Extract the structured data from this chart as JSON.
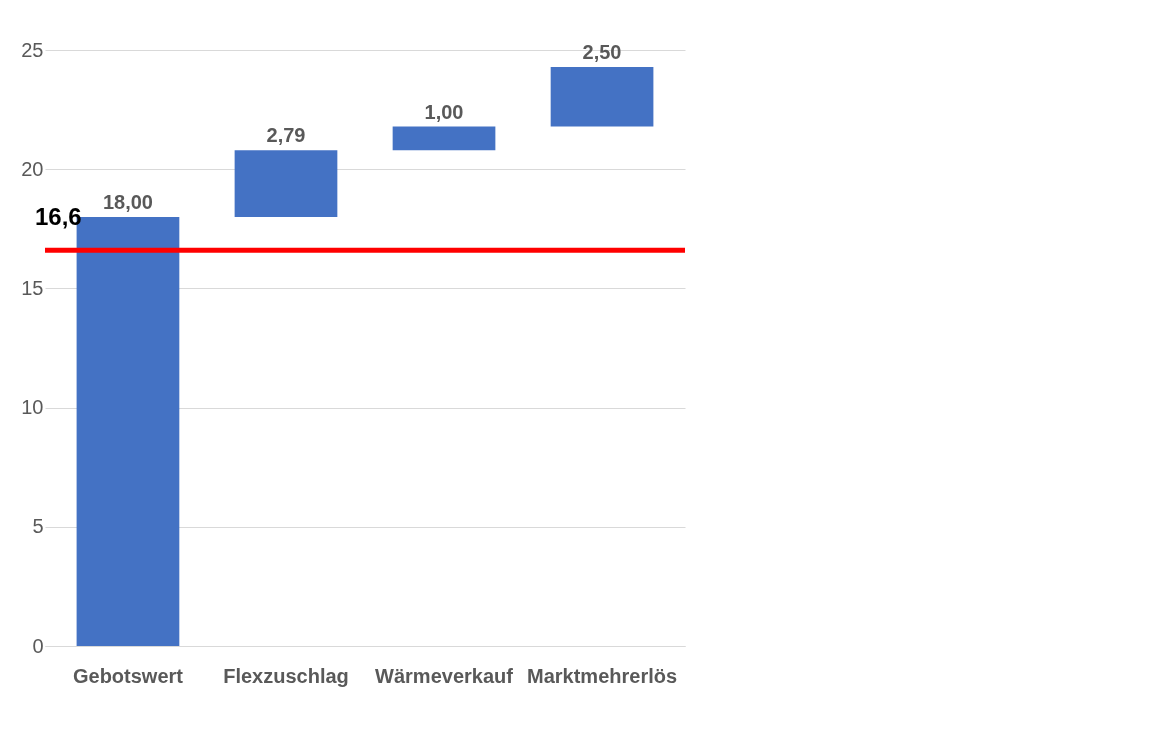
{
  "chart_data": {
    "type": "bar",
    "categories": [
      "Gebotswert",
      "Flexzuschlag",
      "Wärmeverkauf",
      "Marktmehrerlös"
    ],
    "values": [
      18,
      2.79,
      1,
      2.5
    ],
    "base": [
      0,
      18,
      20.79,
      21.79
    ],
    "colors": [
      "#4472c4",
      "#4472c4",
      "#4472c4",
      "#4472c4"
    ],
    "value_labels": [
      "18,00",
      "2,79",
      "1,00",
      "2,50"
    ],
    "ylim": [
      0,
      25
    ],
    "yticks": [
      0,
      5,
      10,
      15,
      20,
      25
    ],
    "grid": "y",
    "ref_lines": [
      {
        "axis": "y",
        "value": 16.6,
        "label": "16,6",
        "color": "#ff0000"
      }
    ]
  }
}
